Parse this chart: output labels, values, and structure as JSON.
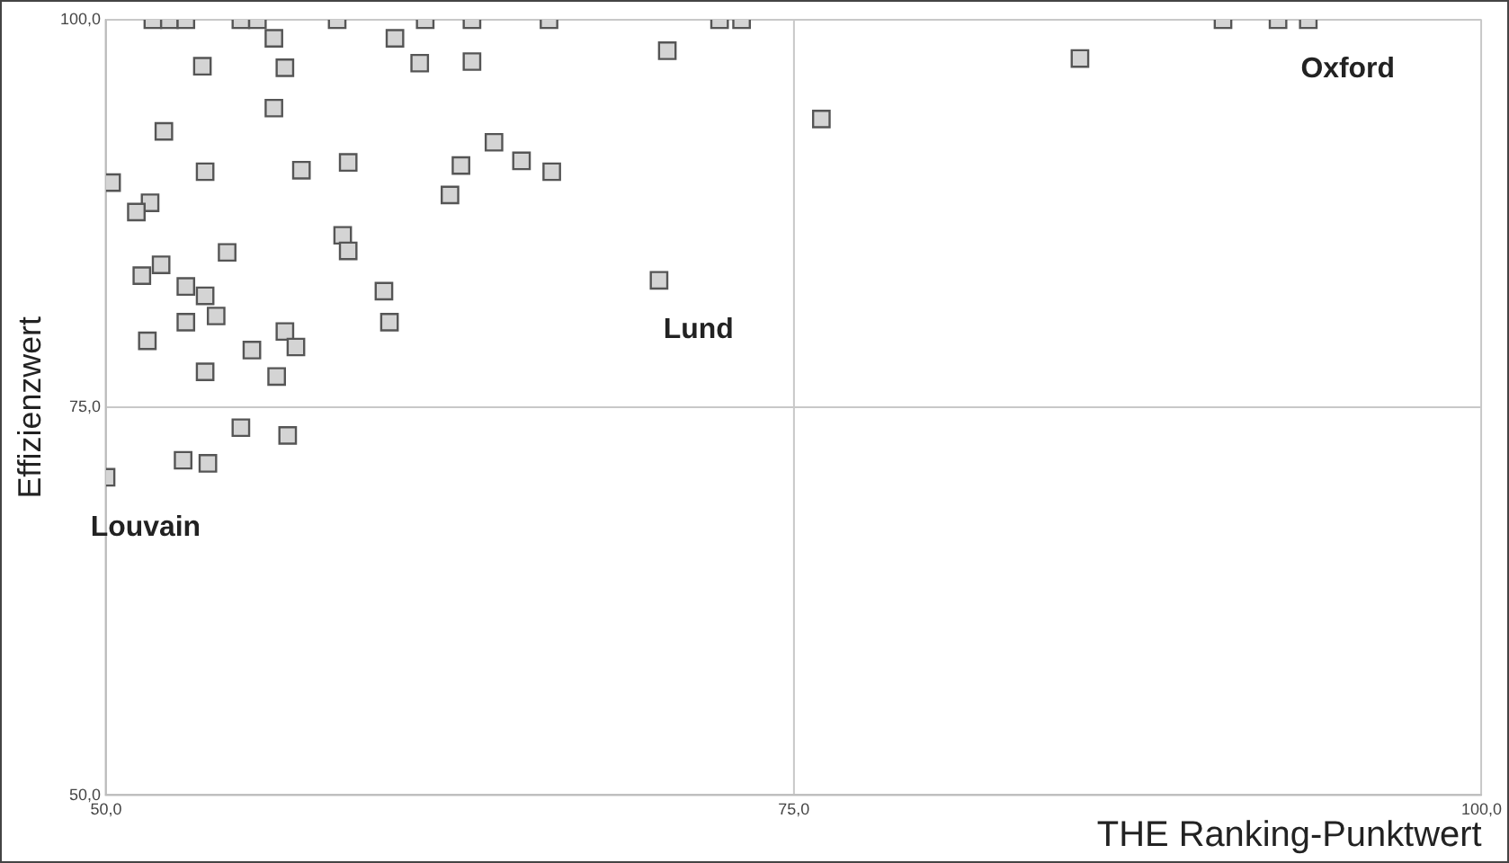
{
  "chart_data": {
    "type": "scatter",
    "xlabel": "THE Ranking-Punktwert",
    "ylabel": "Effizienzwert",
    "xlim": [
      50,
      100
    ],
    "ylim": [
      50,
      100
    ],
    "xticks": [
      {
        "value": 50,
        "label": "50,0"
      },
      {
        "value": 75,
        "label": "75,0"
      },
      {
        "value": 100,
        "label": "100,0"
      }
    ],
    "yticks": [
      {
        "value": 50,
        "label": "50,0"
      },
      {
        "value": 75,
        "label": "75,0"
      },
      {
        "value": 100,
        "label": "100,0"
      }
    ],
    "grid": true,
    "marker": "square",
    "legend": false,
    "series": [
      {
        "color": "#d4d4d4",
        "x": [
          51.7,
          52.3,
          52.9,
          54.9,
          55.5,
          58.4,
          61.6,
          63.3,
          66.1,
          72.3,
          73.1,
          90.6,
          92.6,
          93.7,
          60.5,
          56.1,
          53.5,
          56.5,
          61.4,
          63.3,
          56.1,
          52.1,
          64.1,
          50.2,
          53.6,
          57.1,
          58.8,
          62.9,
          62.5,
          51.6,
          51.1,
          54.4,
          58.6,
          58.8,
          65.1,
          66.2,
          70.4,
          70.1,
          76.0,
          85.4,
          51.3,
          52.0,
          52.9,
          53.6,
          54.0,
          52.9,
          51.5,
          55.3,
          56.5,
          56.9,
          56.2,
          53.6,
          60.1,
          60.3,
          54.9,
          56.6,
          52.8,
          53.7,
          50.0
        ],
        "values": [
          100,
          100,
          100,
          100,
          100,
          100,
          100,
          100,
          100,
          100,
          100,
          100,
          100,
          100,
          98.8,
          98.8,
          97.0,
          96.9,
          97.2,
          97.3,
          94.3,
          92.8,
          92.1,
          89.5,
          90.2,
          90.3,
          90.8,
          90.6,
          88.7,
          88.2,
          87.6,
          85.0,
          86.1,
          85.1,
          90.9,
          90.2,
          98.0,
          83.2,
          93.6,
          97.5,
          83.5,
          84.2,
          82.8,
          82.2,
          80.9,
          80.5,
          79.3,
          78.7,
          79.9,
          78.9,
          77.0,
          77.3,
          82.5,
          80.5,
          73.7,
          73.2,
          71.6,
          71.4,
          70.5
        ]
      }
    ],
    "annotations": [
      {
        "text": "Oxford",
        "x": 93.7,
        "y": 100
      },
      {
        "text": "Lund",
        "x": 70.1,
        "y": 83.2
      },
      {
        "text": "Louvain",
        "x": 50.0,
        "y": 70.5
      }
    ]
  }
}
